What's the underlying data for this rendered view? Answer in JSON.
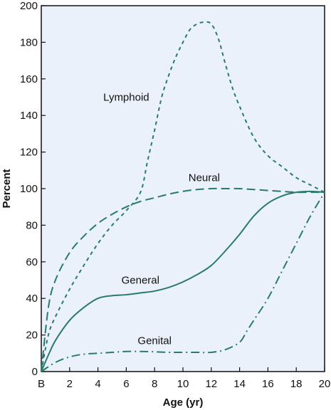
{
  "chart_data": {
    "type": "line",
    "xlabel": "Age (yr)",
    "ylabel": "Percent",
    "x_tick_labels": [
      "B",
      "2",
      "4",
      "6",
      "8",
      "10",
      "12",
      "14",
      "16",
      "18",
      "20"
    ],
    "y_tick_labels": [
      "0",
      "20",
      "40",
      "60",
      "80",
      "100",
      "120",
      "140",
      "160",
      "180",
      "200"
    ],
    "xlim": [
      0,
      20
    ],
    "ylim": [
      0,
      200
    ],
    "grid": false,
    "legend": "none",
    "colors": {
      "line": "#2a7a6c",
      "plot_background": "#eaf1fb",
      "axis": "#111111"
    },
    "series": [
      {
        "name": "Lymphoid",
        "style": "short-dash",
        "x": [
          0,
          0.5,
          1,
          2,
          3,
          4,
          5,
          6,
          7,
          7.5,
          8,
          8.5,
          9,
          9.5,
          10,
          10.5,
          11,
          11.5,
          12,
          12.5,
          13,
          13.5,
          14,
          15,
          16,
          17,
          18,
          19,
          20
        ],
        "y": [
          0,
          20,
          30,
          45,
          58,
          70,
          80,
          88,
          98,
          115,
          132,
          150,
          162,
          172,
          180,
          187,
          190,
          191,
          190,
          182,
          168,
          155,
          145,
          128,
          118,
          112,
          106,
          102,
          98
        ]
      },
      {
        "name": "Neural",
        "style": "long-dash",
        "x": [
          0,
          0.5,
          1,
          2,
          3,
          4,
          5,
          6,
          7,
          8,
          9,
          10,
          11,
          12,
          13,
          14,
          15,
          16,
          17,
          18,
          19,
          20
        ],
        "y": [
          0,
          35,
          50,
          65,
          74,
          81,
          86,
          90,
          93,
          95,
          97,
          98.5,
          99.5,
          100,
          100,
          100,
          99.5,
          99,
          98.5,
          98,
          98,
          98
        ]
      },
      {
        "name": "General",
        "style": "solid",
        "x": [
          0,
          0.5,
          1,
          2,
          3,
          4,
          5,
          6,
          7,
          8,
          9,
          10,
          11,
          12,
          13,
          14,
          15,
          16,
          17,
          18,
          19,
          20
        ],
        "y": [
          0,
          9,
          17,
          28,
          35,
          40,
          41.5,
          42,
          43,
          44,
          46,
          49,
          53,
          58,
          66,
          75,
          85,
          92,
          96,
          98,
          98.5,
          98
        ]
      },
      {
        "name": "Genital",
        "style": "dash-dot",
        "x": [
          0,
          1,
          2,
          3,
          4,
          5,
          6,
          7,
          8,
          9,
          10,
          11,
          12,
          13,
          14,
          14.5,
          15,
          16,
          17,
          18,
          19,
          20
        ],
        "y": [
          0,
          5,
          8,
          9.5,
          10,
          10.5,
          11,
          11,
          10.8,
          10.5,
          10.5,
          10.5,
          10.5,
          12,
          16,
          22,
          28,
          40,
          55,
          70,
          85,
          98
        ]
      }
    ],
    "annotations": [
      {
        "text": "Lymphoid",
        "x": 6,
        "y": 148
      },
      {
        "text": "Neural",
        "x": 11.5,
        "y": 104
      },
      {
        "text": "General",
        "x": 7,
        "y": 48
      },
      {
        "text": "Genital",
        "x": 8,
        "y": 15
      }
    ]
  }
}
